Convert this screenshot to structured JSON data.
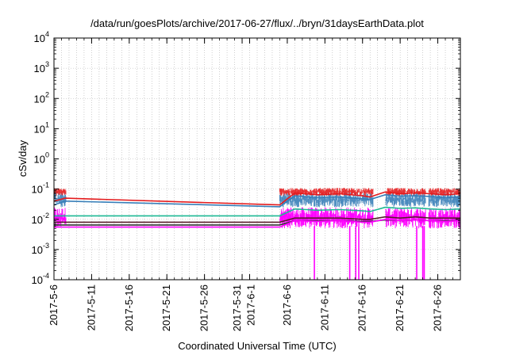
{
  "chart_data": {
    "type": "line",
    "title": "/data/run/goesPlots/archive/2017-06-27/flux/../bryn/31daysEarthData.plot",
    "xlabel": "Coordinated Universal Time (UTC)",
    "ylabel": "cSv/day",
    "y_scale": "log",
    "ylim": [
      0.0001,
      10000
    ],
    "xlim": [
      "2017-05-06",
      "2017-06-29"
    ],
    "grid": true,
    "legend": "none",
    "x_ticks": [
      {
        "date": "2017-05-06",
        "label": "2017-5-6"
      },
      {
        "date": "2017-05-11",
        "label": "2017-5-11"
      },
      {
        "date": "2017-05-16",
        "label": "2017-5-16"
      },
      {
        "date": "2017-05-21",
        "label": "2017-5-21"
      },
      {
        "date": "2017-05-26",
        "label": "2017-5-26"
      },
      {
        "date": "2017-05-31",
        "label": "2017-5-31"
      },
      {
        "date": "2017-06-01",
        "label": "2017-6-1"
      },
      {
        "date": "2017-06-06",
        "label": "2017-6-6"
      },
      {
        "date": "2017-06-11",
        "label": "2017-6-11"
      },
      {
        "date": "2017-06-16",
        "label": "2017-6-16"
      },
      {
        "date": "2017-06-21",
        "label": "2017-6-21"
      },
      {
        "date": "2017-06-26",
        "label": "2017-6-26"
      }
    ],
    "y_ticks": [
      {
        "value": 0.0001,
        "base": "10",
        "exp": "-4"
      },
      {
        "value": 0.001,
        "base": "10",
        "exp": "-3"
      },
      {
        "value": 0.01,
        "base": "10",
        "exp": "-2"
      },
      {
        "value": 0.1,
        "base": "10",
        "exp": "-1"
      },
      {
        "value": 1,
        "base": "10",
        "exp": "0"
      },
      {
        "value": 10,
        "base": "10",
        "exp": "1"
      },
      {
        "value": 100,
        "base": "10",
        "exp": "2"
      },
      {
        "value": 1000,
        "base": "10",
        "exp": "3"
      },
      {
        "value": 10000,
        "base": "10",
        "exp": "4"
      }
    ],
    "series": [
      {
        "color": "#e41a1c",
        "points": [
          [
            "2017-05-06",
            0.04
          ],
          [
            "2017-05-07.5",
            0.05
          ],
          [
            "2017-06-05",
            0.03
          ],
          [
            "2017-06-07",
            0.075
          ],
          [
            "2017-06-10",
            0.065
          ],
          [
            "2017-06-13",
            0.07
          ],
          [
            "2017-06-16",
            0.06
          ],
          [
            "2017-06-17",
            0.055
          ],
          [
            "2017-06-19",
            0.08
          ],
          [
            "2017-06-21",
            0.07
          ],
          [
            "2017-06-23",
            0.075
          ],
          [
            "2017-06-25",
            0.07
          ],
          [
            "2017-06-27",
            0.065
          ],
          [
            "2017-06-29",
            0.07
          ]
        ]
      },
      {
        "color": "#377eb8",
        "points": [
          [
            "2017-05-06",
            0.03
          ],
          [
            "2017-05-07.5",
            0.04
          ],
          [
            "2017-06-05",
            0.026
          ],
          [
            "2017-06-07",
            0.06
          ],
          [
            "2017-06-10",
            0.052
          ],
          [
            "2017-06-13",
            0.055
          ],
          [
            "2017-06-16",
            0.048
          ],
          [
            "2017-06-17",
            0.045
          ],
          [
            "2017-06-19",
            0.065
          ],
          [
            "2017-06-21",
            0.058
          ],
          [
            "2017-06-23",
            0.06
          ],
          [
            "2017-06-25",
            0.057
          ],
          [
            "2017-06-27",
            0.052
          ],
          [
            "2017-06-29",
            0.055
          ]
        ]
      },
      {
        "color": "#1db894",
        "points": [
          [
            "2017-05-06",
            0.013
          ],
          [
            "2017-05-07.5",
            0.013
          ],
          [
            "2017-06-05",
            0.013
          ],
          [
            "2017-06-07",
            0.022
          ],
          [
            "2017-06-10",
            0.02
          ],
          [
            "2017-06-13",
            0.021
          ],
          [
            "2017-06-16",
            0.019
          ],
          [
            "2017-06-17",
            0.018
          ],
          [
            "2017-06-19",
            0.025
          ],
          [
            "2017-06-21",
            0.023
          ],
          [
            "2017-06-23",
            0.024
          ],
          [
            "2017-06-25",
            0.022
          ],
          [
            "2017-06-27",
            0.021
          ],
          [
            "2017-06-29",
            0.022
          ]
        ]
      },
      {
        "color": "#5a1f2c",
        "points": [
          [
            "2017-05-06",
            0.008
          ],
          [
            "2017-05-07.5",
            0.008
          ],
          [
            "2017-06-05",
            0.008
          ],
          [
            "2017-06-07",
            0.011
          ],
          [
            "2017-06-10",
            0.011
          ],
          [
            "2017-06-13",
            0.011
          ],
          [
            "2017-06-16",
            0.01
          ],
          [
            "2017-06-17",
            0.01
          ],
          [
            "2017-06-19",
            0.012
          ],
          [
            "2017-06-21",
            0.011
          ],
          [
            "2017-06-23",
            0.012
          ],
          [
            "2017-06-25",
            0.011
          ],
          [
            "2017-06-27",
            0.011
          ],
          [
            "2017-06-29",
            0.011
          ]
        ]
      },
      {
        "color": "#333333",
        "points": [
          [
            "2017-05-06",
            0.0065
          ],
          [
            "2017-05-07.5",
            0.0065
          ],
          [
            "2017-06-05",
            0.0065
          ],
          [
            "2017-06-07",
            0.009
          ],
          [
            "2017-06-10",
            0.009
          ],
          [
            "2017-06-13",
            0.009
          ],
          [
            "2017-06-16",
            0.0085
          ],
          [
            "2017-06-17",
            0.0085
          ],
          [
            "2017-06-19",
            0.0095
          ],
          [
            "2017-06-21",
            0.009
          ],
          [
            "2017-06-23",
            0.0095
          ],
          [
            "2017-06-25",
            0.009
          ],
          [
            "2017-06-27",
            0.009
          ],
          [
            "2017-06-29",
            0.009
          ]
        ]
      },
      {
        "color": "#ff00ff",
        "points": [
          [
            "2017-05-06",
            0.0055
          ],
          [
            "2017-05-07.5",
            0.0055
          ],
          [
            "2017-06-05",
            0.0055
          ],
          [
            "2017-06-07",
            0.009
          ],
          [
            "2017-06-10",
            0.0085
          ],
          [
            "2017-06-13",
            0.009
          ],
          [
            "2017-06-16",
            0.008
          ],
          [
            "2017-06-17",
            0.008
          ],
          [
            "2017-06-19",
            0.01
          ],
          [
            "2017-06-21",
            0.009
          ],
          [
            "2017-06-23",
            0.0095
          ],
          [
            "2017-06-25",
            0.009
          ],
          [
            "2017-06-27",
            0.0085
          ],
          [
            "2017-06-29",
            0.009
          ]
        ]
      }
    ],
    "noise_bands": [
      {
        "color": "#ff00ff",
        "ranges": [
          [
            "2017-05-06",
            "2017-05-07.6"
          ],
          [
            "2017-06-05",
            "2017-06-17.4"
          ],
          [
            "2017-06-19.1",
            "2017-06-24.4"
          ],
          [
            "2017-06-24.8",
            "2017-06-29"
          ]
        ],
        "low": 0.005,
        "high": 0.025
      },
      {
        "color": "#377eb8",
        "ranges": [
          [
            "2017-05-06",
            "2017-05-07.6"
          ],
          [
            "2017-06-05",
            "2017-06-17.4"
          ],
          [
            "2017-06-19.1",
            "2017-06-24.4"
          ],
          [
            "2017-06-24.8",
            "2017-06-29"
          ]
        ],
        "low": 0.025,
        "high": 0.08
      },
      {
        "color": "#e41a1c",
        "ranges": [
          [
            "2017-05-06",
            "2017-05-07.6"
          ],
          [
            "2017-06-05",
            "2017-06-17.4"
          ],
          [
            "2017-06-19.1",
            "2017-06-24.4"
          ],
          [
            "2017-06-24.8",
            "2017-06-29"
          ]
        ],
        "low": 0.06,
        "high": 0.11
      }
    ],
    "dropouts": [
      {
        "color": "#ff00ff",
        "date": "2017-06-09.6",
        "low": 0.0001
      },
      {
        "color": "#ff00ff",
        "date": "2017-06-14.3",
        "low": 0.0001
      },
      {
        "color": "#ff00ff",
        "date": "2017-06-15.1",
        "low": 0.0001
      },
      {
        "color": "#ff00ff",
        "date": "2017-06-15.5",
        "low": 0.0001
      },
      {
        "color": "#ff00ff",
        "date": "2017-06-23.2",
        "low": 0.0001
      },
      {
        "color": "#ff00ff",
        "date": "2017-06-24.0",
        "low": 0.0001
      },
      {
        "color": "#ff00ff",
        "date": "2017-06-24.2",
        "low": 0.0001
      }
    ]
  }
}
